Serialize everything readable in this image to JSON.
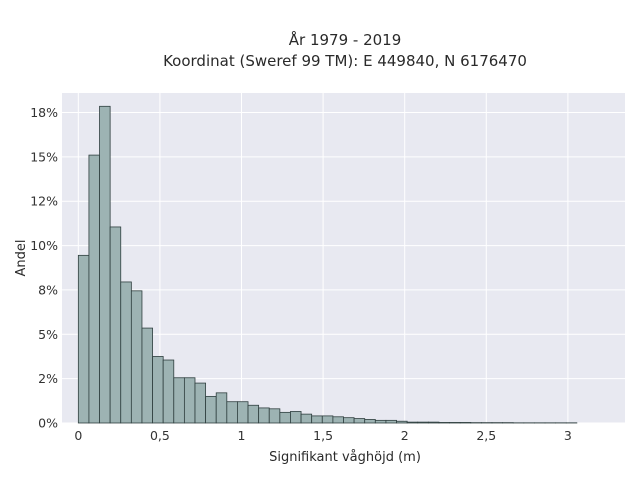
{
  "chart_data": {
    "type": "bar",
    "title_lines": [
      "År 1979 - 2019",
      "Koordinat (Sweref 99 TM): E 449840, N 6176470"
    ],
    "xlabel": "Signifikant våghöjd (m)",
    "ylabel": "Andel",
    "xlim": [
      -0.1,
      3.35
    ],
    "ylim": [
      0,
      18.6
    ],
    "x_ticks": [
      0,
      0.5,
      1,
      1.5,
      2,
      2.5,
      3
    ],
    "x_tick_labels": [
      "0",
      "0,5",
      "1",
      "1,5",
      "2",
      "2,5",
      "3"
    ],
    "y_ticks": [
      0,
      2.5,
      5,
      7.5,
      10,
      12.5,
      15,
      17.5
    ],
    "y_tick_labels": [
      "0%",
      "2%",
      "5%",
      "8%",
      "10%",
      "12%",
      "15%",
      "18%"
    ],
    "bin_width": 0.065,
    "bin_start": 0.0,
    "values": [
      9.45,
      15.1,
      17.85,
      11.05,
      7.95,
      7.45,
      5.35,
      3.75,
      3.55,
      2.55,
      2.55,
      2.25,
      1.5,
      1.7,
      1.2,
      1.2,
      1.0,
      0.85,
      0.8,
      0.6,
      0.65,
      0.5,
      0.4,
      0.4,
      0.35,
      0.3,
      0.25,
      0.2,
      0.15,
      0.15,
      0.1,
      0.05,
      0.05,
      0.05,
      0.03,
      0.03,
      0.03,
      0.02,
      0.02,
      0.02,
      0.02,
      0.01,
      0.01,
      0.01,
      0.01,
      0.01,
      0.01
    ],
    "grid": true,
    "colors": {
      "plot_background": "#e8e9f1",
      "grid": "#ffffff",
      "bar_fill": "#9db3b3",
      "bar_edge": "#2f3f3f"
    }
  }
}
